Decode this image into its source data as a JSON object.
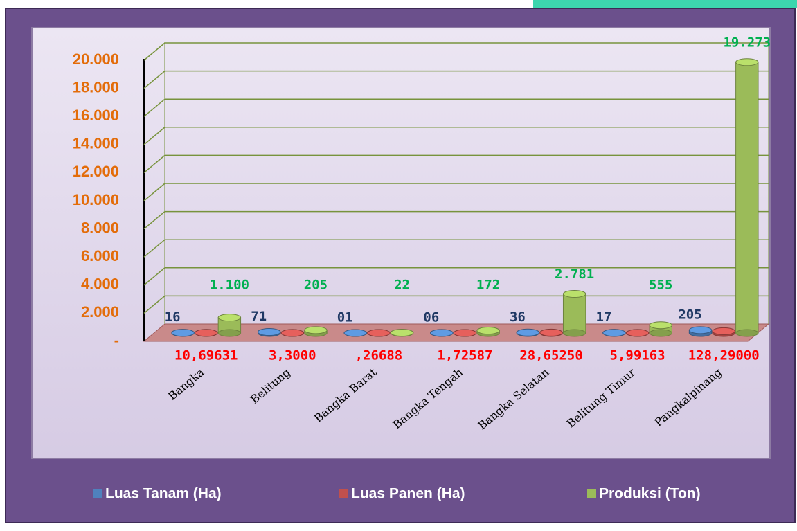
{
  "chart_data": {
    "type": "bar3d",
    "categories": [
      "Bangka",
      "Belitung",
      "Bangka Barat",
      "Bangka Tengah",
      "Bangka Selatan",
      "Belitung Timur",
      "Pangkalpinang"
    ],
    "series": [
      {
        "name": "Luas Tanam (Ha)",
        "color": "#4f81bd",
        "values": [
          16,
          71,
          1,
          6,
          36,
          17,
          205
        ],
        "value_labels": [
          "16",
          "71",
          "01",
          "06",
          "36",
          "17",
          "205"
        ],
        "label_color": "#1f3864"
      },
      {
        "name": "Luas Panen (Ha)",
        "color": "#c0504d",
        "values": [
          10.69631,
          3.3,
          0.26688,
          1.72587,
          28.6525,
          5.99163,
          128.29
        ],
        "value_labels": [
          "10,69631",
          "3,3000",
          ",26688",
          "1,72587",
          "28,65250",
          "5,99163",
          "128,29000"
        ],
        "label_color": "#ff0000"
      },
      {
        "name": "Produksi (Ton)",
        "color": "#9bbb59",
        "values": [
          1100,
          205,
          22,
          172,
          2781,
          555,
          19273
        ],
        "value_labels": [
          "1.100",
          "205",
          "22",
          "172",
          "2.781",
          "555",
          "19.273"
        ],
        "label_color": "#00b050"
      }
    ],
    "ylim": [
      0,
      20000
    ],
    "yticks": [
      {
        "value": 0,
        "label": "-"
      },
      {
        "value": 2000,
        "label": "2.000"
      },
      {
        "value": 4000,
        "label": "4.000"
      },
      {
        "value": 6000,
        "label": "6.000"
      },
      {
        "value": 8000,
        "label": "8.000"
      },
      {
        "value": 10000,
        "label": "10.000"
      },
      {
        "value": 12000,
        "label": "12.000"
      },
      {
        "value": 14000,
        "label": "14.000"
      },
      {
        "value": 16000,
        "label": "16.000"
      },
      {
        "value": 18000,
        "label": "18.000"
      },
      {
        "value": 20000,
        "label": "20.000"
      }
    ],
    "grid": true,
    "legend": "bottom"
  }
}
